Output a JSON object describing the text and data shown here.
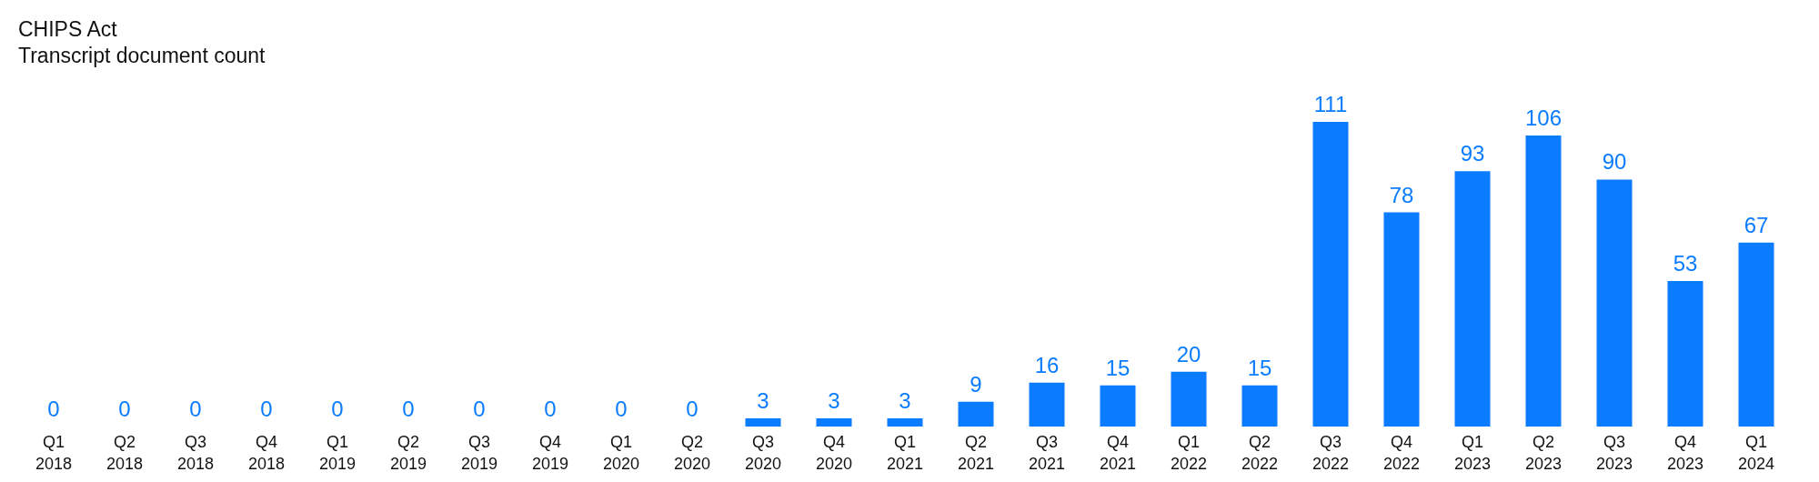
{
  "chart_data": {
    "type": "bar",
    "title": "CHIPS Act",
    "subtitle": "Transcript document count",
    "categories": [
      "Q1 2018",
      "Q2 2018",
      "Q3 2018",
      "Q4 2018",
      "Q1 2019",
      "Q2 2019",
      "Q3 2019",
      "Q4 2019",
      "Q1 2020",
      "Q2 2020",
      "Q3 2020",
      "Q4 2020",
      "Q1 2021",
      "Q2 2021",
      "Q3 2021",
      "Q4 2021",
      "Q1 2022",
      "Q2 2022",
      "Q3 2022",
      "Q4 2022",
      "Q1 2023",
      "Q2 2023",
      "Q3 2023",
      "Q4 2023",
      "Q1 2024"
    ],
    "values": [
      0,
      0,
      0,
      0,
      0,
      0,
      0,
      0,
      0,
      0,
      3,
      3,
      3,
      9,
      16,
      15,
      20,
      15,
      111,
      78,
      93,
      106,
      90,
      53,
      67
    ],
    "color": "#0a7cff",
    "data_labels": true
  }
}
